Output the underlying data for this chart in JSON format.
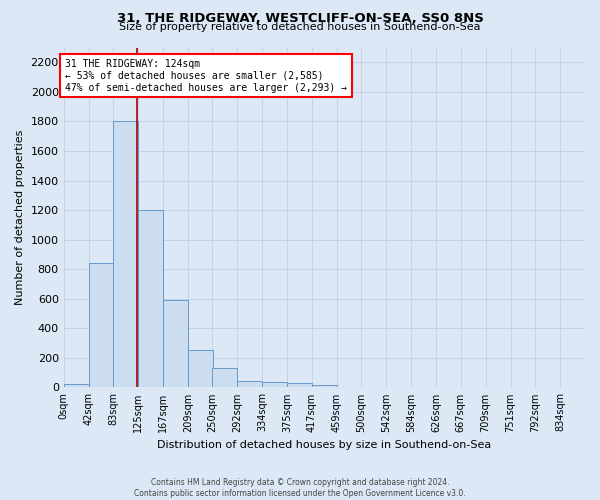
{
  "title_line1": "31, THE RIDGEWAY, WESTCLIFF-ON-SEA, SS0 8NS",
  "title_line2": "Size of property relative to detached houses in Southend-on-Sea",
  "xlabel": "Distribution of detached houses by size in Southend-on-Sea",
  "ylabel": "Number of detached properties",
  "bin_labels": [
    "0sqm",
    "42sqm",
    "83sqm",
    "125sqm",
    "167sqm",
    "209sqm",
    "250sqm",
    "292sqm",
    "334sqm",
    "375sqm",
    "417sqm",
    "459sqm",
    "500sqm",
    "542sqm",
    "584sqm",
    "626sqm",
    "667sqm",
    "709sqm",
    "751sqm",
    "792sqm",
    "834sqm"
  ],
  "bin_edges": [
    0,
    42,
    83,
    125,
    167,
    209,
    250,
    292,
    334,
    375,
    417,
    459,
    500,
    542,
    584,
    626,
    667,
    709,
    751,
    792,
    834
  ],
  "bar_heights": [
    25,
    845,
    1800,
    1200,
    590,
    255,
    130,
    45,
    40,
    30,
    18,
    0,
    0,
    0,
    0,
    0,
    0,
    0,
    0,
    0
  ],
  "bar_color": "#ccddf0",
  "bar_edge_color": "#6699cc",
  "ylim": [
    0,
    2300
  ],
  "yticks": [
    0,
    200,
    400,
    600,
    800,
    1000,
    1200,
    1400,
    1600,
    1800,
    2000,
    2200
  ],
  "red_line_x": 124,
  "annotation_title": "31 THE RIDGEWAY: 124sqm",
  "annotation_line1": "← 53% of detached houses are smaller (2,585)",
  "annotation_line2": "47% of semi-detached houses are larger (2,293) →",
  "annotation_box_color": "white",
  "annotation_box_edge_color": "red",
  "red_line_color": "#aa0000",
  "grid_color": "#c0d0e8",
  "background_color": "#dce8f5",
  "footer_line1": "Contains HM Land Registry data © Crown copyright and database right 2024.",
  "footer_line2": "Contains public sector information licensed under the Open Government Licence v3.0."
}
